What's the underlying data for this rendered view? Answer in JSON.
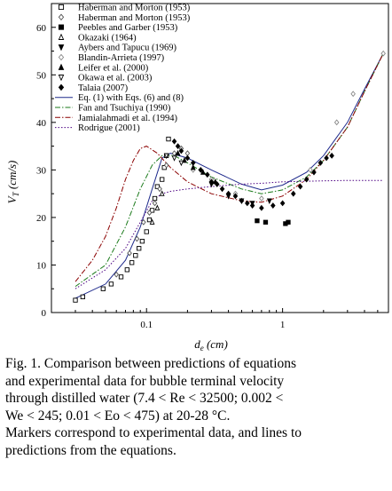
{
  "chart_data": {
    "type": "scatter",
    "xscale": "log",
    "xlim": [
      0.02,
      6
    ],
    "ylim": [
      0,
      65
    ],
    "x_ticks": [
      0.1,
      1
    ],
    "x_tick_labels": [
      "0.1",
      "1"
    ],
    "y_ticks": [
      0,
      10,
      20,
      30,
      40,
      50,
      60
    ],
    "y_tick_labels": [
      "0",
      "10",
      "20",
      "30",
      "40",
      "50",
      "60"
    ],
    "xlabel_main": "d",
    "xlabel_sub": "e",
    "xlabel_unit": " (cm)",
    "ylabel_main": "V",
    "ylabel_sub": "T",
    "ylabel_unit": " (cm/s)",
    "legend_position": "top-left",
    "grid": false,
    "series": [
      {
        "name": "Haberman and Morton (1953)",
        "marker": "square-open",
        "color": "#000000",
        "points": [
          [
            0.03,
            2.6
          ],
          [
            0.034,
            3.3
          ],
          [
            0.048,
            5.0
          ],
          [
            0.055,
            6.0
          ],
          [
            0.065,
            7.5
          ],
          [
            0.072,
            9.0
          ],
          [
            0.078,
            10.5
          ],
          [
            0.083,
            12.0
          ],
          [
            0.088,
            13.5
          ],
          [
            0.093,
            15.0
          ],
          [
            0.1,
            17.0
          ],
          [
            0.105,
            19.5
          ],
          [
            0.11,
            21.5
          ],
          [
            0.115,
            24.0
          ],
          [
            0.12,
            26.5
          ],
          [
            0.13,
            28.0
          ],
          [
            0.135,
            30.5
          ],
          [
            0.14,
            33.0
          ],
          [
            0.145,
            36.5
          ]
        ]
      },
      {
        "name": "Haberman and Morton (1953)",
        "marker": "diamond-open",
        "color": "#555555",
        "points": [
          [
            0.06,
            8.0
          ],
          [
            0.075,
            12.5
          ],
          [
            0.085,
            15.5
          ],
          [
            0.095,
            19.0
          ],
          [
            0.105,
            21.0
          ],
          [
            0.115,
            23.0
          ],
          [
            0.125,
            26.0
          ],
          [
            0.14,
            31.0
          ],
          [
            0.16,
            33.5
          ],
          [
            0.18,
            34.5
          ],
          [
            0.2,
            33.5
          ]
        ]
      },
      {
        "name": "Peebles and Garber (1953)",
        "marker": "square-filled",
        "color": "#000000",
        "points": [
          [
            0.65,
            19.3
          ],
          [
            0.75,
            19.0
          ],
          [
            1.05,
            18.7
          ],
          [
            1.1,
            19.0
          ]
        ]
      },
      {
        "name": "Okazaki (1964)",
        "marker": "triangle-up-open",
        "color": "#000000",
        "points": [
          [
            0.11,
            19.0
          ],
          [
            0.12,
            22.0
          ],
          [
            0.13,
            25.0
          ]
        ]
      },
      {
        "name": "Aybers and Tapucu (1969)",
        "marker": "triangle-down-filled",
        "color": "#000000",
        "points": [
          [
            0.3,
            27.0
          ],
          [
            0.4,
            24.5
          ],
          [
            0.5,
            23.5
          ],
          [
            0.6,
            23.0
          ],
          [
            0.8,
            23.5
          ]
        ]
      },
      {
        "name": "Blandin-Arrieta (1997)",
        "marker": "diamond-open",
        "color": "#888888",
        "points": [
          [
            0.22,
            30.0
          ],
          [
            0.3,
            28.0
          ],
          [
            0.45,
            25.0
          ],
          [
            0.7,
            24.0
          ],
          [
            1.6,
            30.0
          ],
          [
            2.5,
            40.0
          ],
          [
            3.3,
            46.0
          ],
          [
            5.5,
            54.5
          ]
        ]
      },
      {
        "name": "Leifer et al. (2000)",
        "marker": "triangle-up-filled",
        "color": "#000000",
        "points": [
          [
            0.17,
            33.5
          ],
          [
            0.19,
            32.0
          ],
          [
            0.22,
            30.5
          ],
          [
            0.26,
            29.5
          ],
          [
            0.32,
            27.5
          ]
        ]
      },
      {
        "name": "Okawa et al. (2003)",
        "marker": "triangle-down-open",
        "color": "#000000",
        "points": [
          [
            0.14,
            33.0
          ],
          [
            0.16,
            32.5
          ],
          [
            0.18,
            31.5
          ]
        ]
      },
      {
        "name": "Talaia (2007)",
        "marker": "diamond-filled",
        "color": "#000000",
        "points": [
          [
            0.16,
            36.0
          ],
          [
            0.17,
            35.0
          ],
          [
            0.18,
            34.0
          ],
          [
            0.2,
            32.5
          ],
          [
            0.22,
            31.5
          ],
          [
            0.25,
            30.0
          ],
          [
            0.28,
            29.0
          ],
          [
            0.3,
            27.5
          ],
          [
            0.33,
            27.0
          ],
          [
            0.36,
            26.0
          ],
          [
            0.4,
            25.0
          ],
          [
            0.45,
            24.5
          ],
          [
            0.5,
            23.5
          ],
          [
            0.55,
            23.0
          ],
          [
            0.6,
            22.5
          ],
          [
            0.7,
            22.0
          ],
          [
            0.85,
            22.5
          ],
          [
            1.0,
            23.0
          ],
          [
            1.2,
            25.0
          ],
          [
            1.35,
            26.5
          ],
          [
            1.5,
            28.0
          ],
          [
            1.7,
            29.5
          ],
          [
            1.9,
            31.5
          ],
          [
            2.1,
            32.5
          ],
          [
            2.3,
            33.0
          ]
        ]
      },
      {
        "name": "Eq. (1) with Eqs. (6) and (8)",
        "marker": "line-solid",
        "color": "#1e2a8c",
        "points": [
          [
            0.03,
            3.0
          ],
          [
            0.05,
            6.0
          ],
          [
            0.07,
            11.0
          ],
          [
            0.09,
            18.0
          ],
          [
            0.11,
            26.0
          ],
          [
            0.13,
            32.5
          ],
          [
            0.15,
            33.5
          ],
          [
            0.2,
            32.5
          ],
          [
            0.3,
            30.0
          ],
          [
            0.5,
            27.0
          ],
          [
            0.7,
            25.8
          ],
          [
            1.0,
            26.8
          ],
          [
            1.5,
            29.5
          ],
          [
            2.0,
            33.0
          ],
          [
            3.0,
            40.0
          ],
          [
            4.0,
            47.0
          ],
          [
            5.5,
            54.5
          ]
        ]
      },
      {
        "name": "Fan and Tsuchiya (1990)",
        "marker": "line-dashdot",
        "color": "#1a7a1a",
        "points": [
          [
            0.03,
            5.5
          ],
          [
            0.05,
            10.0
          ],
          [
            0.07,
            18.0
          ],
          [
            0.09,
            26.0
          ],
          [
            0.11,
            31.0
          ],
          [
            0.13,
            33.0
          ],
          [
            0.16,
            33.0
          ],
          [
            0.2,
            31.5
          ],
          [
            0.3,
            28.5
          ],
          [
            0.5,
            26.0
          ],
          [
            0.7,
            25.0
          ],
          [
            1.0,
            25.8
          ],
          [
            1.5,
            28.5
          ],
          [
            2.0,
            32.0
          ],
          [
            3.0,
            39.0
          ],
          [
            4.0,
            46.5
          ],
          [
            5.5,
            54.5
          ]
        ]
      },
      {
        "name": "Jamialahmadi et al. (1994)",
        "marker": "line-dashdot",
        "color": "#8b0000",
        "points": [
          [
            0.03,
            6.5
          ],
          [
            0.04,
            11.0
          ],
          [
            0.05,
            16.0
          ],
          [
            0.06,
            22.0
          ],
          [
            0.07,
            28.0
          ],
          [
            0.08,
            32.0
          ],
          [
            0.09,
            34.5
          ],
          [
            0.1,
            35.0
          ],
          [
            0.12,
            33.5
          ],
          [
            0.15,
            30.5
          ],
          [
            0.2,
            27.5
          ],
          [
            0.3,
            25.0
          ],
          [
            0.5,
            23.5
          ],
          [
            0.7,
            23.2
          ],
          [
            1.0,
            24.5
          ],
          [
            1.5,
            28.0
          ],
          [
            2.0,
            32.0
          ],
          [
            3.0,
            39.0
          ],
          [
            4.0,
            46.5
          ],
          [
            5.5,
            54.5
          ]
        ]
      },
      {
        "name": "Rodrigue (2001)",
        "marker": "line-dotted",
        "color": "#4b0082",
        "points": [
          [
            0.03,
            5.0
          ],
          [
            0.05,
            9.0
          ],
          [
            0.07,
            13.5
          ],
          [
            0.09,
            19.0
          ],
          [
            0.11,
            23.5
          ],
          [
            0.13,
            25.0
          ],
          [
            0.15,
            25.5
          ],
          [
            0.2,
            26.0
          ],
          [
            0.3,
            26.5
          ],
          [
            0.5,
            27.0
          ],
          [
            0.7,
            27.2
          ],
          [
            1.0,
            27.5
          ],
          [
            2.0,
            27.7
          ],
          [
            3.0,
            27.8
          ],
          [
            5.5,
            27.8
          ]
        ]
      }
    ]
  },
  "caption": {
    "line1": "Fig. 1. Comparison between predictions of equations",
    "line2": "and experimental data for bubble terminal velocity",
    "line3": "through distilled water (7.4 < Re < 32500; 0.002 <",
    "line4": "We < 245; 0.01 < Eo < 475) at 20-28 °C.",
    "line5": "Markers correspond to experimental data, and lines to",
    "line6": "predictions from the equations."
  }
}
